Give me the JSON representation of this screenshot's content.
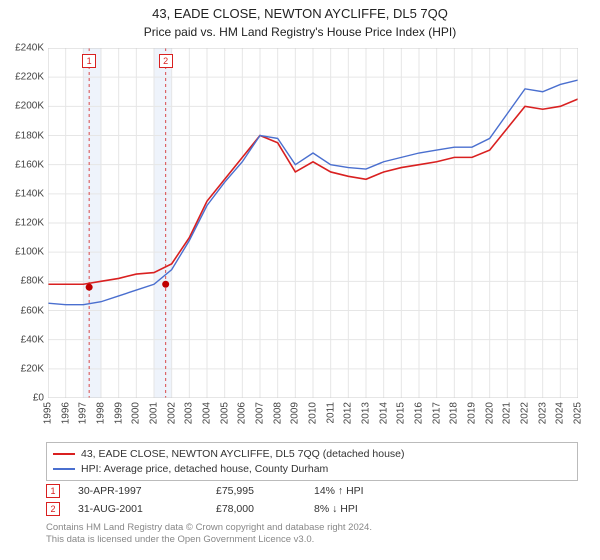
{
  "title": "43, EADE CLOSE, NEWTON AYCLIFFE, DL5 7QQ",
  "subtitle": "Price paid vs. HM Land Registry's House Price Index (HPI)",
  "chart": {
    "type": "line",
    "background_color": "#ffffff",
    "grid_color": "#e6e6e6",
    "border_color": "#cccccc",
    "ylim": [
      0,
      240000
    ],
    "ytick_step": 20000,
    "y_tick_labels": [
      "£0",
      "£20K",
      "£40K",
      "£60K",
      "£80K",
      "£100K",
      "£120K",
      "£140K",
      "£160K",
      "£180K",
      "£200K",
      "£220K",
      "£240K"
    ],
    "x_years": [
      1995,
      1996,
      1997,
      1998,
      1999,
      2000,
      2001,
      2002,
      2003,
      2004,
      2005,
      2006,
      2007,
      2008,
      2009,
      2010,
      2011,
      2012,
      2013,
      2014,
      2015,
      2016,
      2017,
      2018,
      2019,
      2020,
      2021,
      2022,
      2023,
      2024,
      2025
    ],
    "band_color": "#eef3fb",
    "marker_line_color": "#d94a4a",
    "series": [
      {
        "name": "price_paid",
        "color": "#d92020",
        "width": 1.6,
        "points": [
          [
            1995,
            78000
          ],
          [
            1996,
            78000
          ],
          [
            1997,
            78000
          ],
          [
            1998,
            80000
          ],
          [
            1999,
            82000
          ],
          [
            2000,
            85000
          ],
          [
            2001,
            86000
          ],
          [
            2002,
            92000
          ],
          [
            2003,
            110000
          ],
          [
            2004,
            135000
          ],
          [
            2005,
            150000
          ],
          [
            2006,
            165000
          ],
          [
            2007,
            180000
          ],
          [
            2008,
            175000
          ],
          [
            2009,
            155000
          ],
          [
            2010,
            162000
          ],
          [
            2011,
            155000
          ],
          [
            2012,
            152000
          ],
          [
            2013,
            150000
          ],
          [
            2014,
            155000
          ],
          [
            2015,
            158000
          ],
          [
            2016,
            160000
          ],
          [
            2017,
            162000
          ],
          [
            2018,
            165000
          ],
          [
            2019,
            165000
          ],
          [
            2020,
            170000
          ],
          [
            2021,
            185000
          ],
          [
            2022,
            200000
          ],
          [
            2023,
            198000
          ],
          [
            2024,
            200000
          ],
          [
            2025,
            205000
          ]
        ]
      },
      {
        "name": "hpi",
        "color": "#4a6fcf",
        "width": 1.4,
        "points": [
          [
            1995,
            65000
          ],
          [
            1996,
            64000
          ],
          [
            1997,
            64000
          ],
          [
            1998,
            66000
          ],
          [
            1999,
            70000
          ],
          [
            2000,
            74000
          ],
          [
            2001,
            78000
          ],
          [
            2002,
            88000
          ],
          [
            2003,
            108000
          ],
          [
            2004,
            132000
          ],
          [
            2005,
            148000
          ],
          [
            2006,
            162000
          ],
          [
            2007,
            180000
          ],
          [
            2008,
            178000
          ],
          [
            2009,
            160000
          ],
          [
            2010,
            168000
          ],
          [
            2011,
            160000
          ],
          [
            2012,
            158000
          ],
          [
            2013,
            157000
          ],
          [
            2014,
            162000
          ],
          [
            2015,
            165000
          ],
          [
            2016,
            168000
          ],
          [
            2017,
            170000
          ],
          [
            2018,
            172000
          ],
          [
            2019,
            172000
          ],
          [
            2020,
            178000
          ],
          [
            2021,
            195000
          ],
          [
            2022,
            212000
          ],
          [
            2023,
            210000
          ],
          [
            2024,
            215000
          ],
          [
            2025,
            218000
          ]
        ]
      }
    ],
    "sale_markers": [
      {
        "n": "1",
        "year": 1997.33,
        "price": 75995,
        "band": [
          1997,
          1998
        ]
      },
      {
        "n": "2",
        "year": 2001.66,
        "price": 78000,
        "band": [
          2001,
          2002
        ]
      }
    ],
    "marker_box_color": "#d92020",
    "marker_dot_color": "#c00000"
  },
  "legend": {
    "items": [
      {
        "color": "#d92020",
        "label": "43, EADE CLOSE, NEWTON AYCLIFFE, DL5 7QQ (detached house)"
      },
      {
        "color": "#4a6fcf",
        "label": "HPI: Average price, detached house, County Durham"
      }
    ]
  },
  "sales": [
    {
      "n": "1",
      "date": "30-APR-1997",
      "price": "£75,995",
      "delta": "14% ↑ HPI"
    },
    {
      "n": "2",
      "date": "31-AUG-2001",
      "price": "£78,000",
      "delta": "8% ↓ HPI"
    }
  ],
  "footnote_line1": "Contains HM Land Registry data © Crown copyright and database right 2024.",
  "footnote_line2": "This data is licensed under the Open Government Licence v3.0."
}
